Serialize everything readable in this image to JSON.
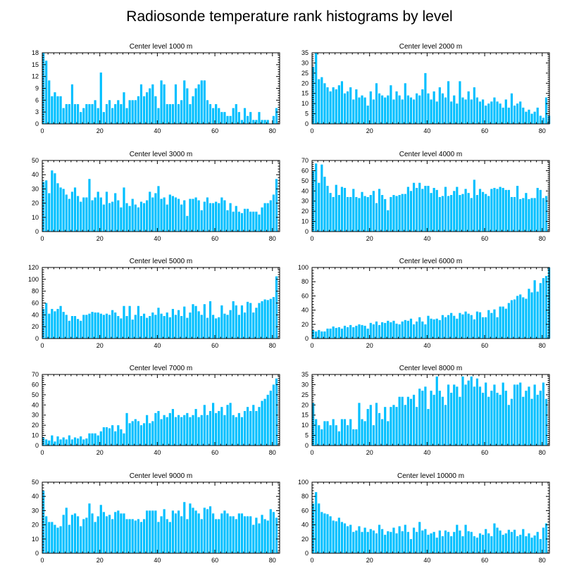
{
  "figure_title": "Radiosonde temperature rank histograms by level",
  "colors": {
    "bar": "#00bfff",
    "axis": "#000000",
    "background": "#ffffff"
  },
  "chart_data": [
    {
      "type": "bar",
      "title": "Center level 1000 m",
      "xlim": [
        0,
        82
      ],
      "ylim": [
        0,
        18
      ],
      "xticks": [
        0,
        20,
        40,
        60,
        80
      ],
      "yticks": [
        0,
        3,
        6,
        9,
        12,
        15,
        18
      ],
      "values": [
        18,
        16,
        11,
        7,
        8,
        7,
        7,
        4,
        5,
        5,
        10,
        5,
        5,
        3,
        4,
        5,
        5,
        5,
        6,
        4,
        13,
        3,
        5,
        6,
        4,
        5,
        6,
        5,
        8,
        4,
        6,
        6,
        6,
        7,
        10,
        7,
        8,
        9,
        10,
        7,
        4,
        11,
        10,
        5,
        5,
        5,
        10,
        5,
        6,
        11,
        9,
        5,
        7,
        9,
        10,
        11,
        11,
        6,
        5,
        4,
        5,
        4,
        3,
        3,
        2,
        2,
        4,
        5,
        3,
        1,
        4,
        2,
        3,
        1,
        1,
        3,
        1,
        1,
        1,
        0,
        2,
        4
      ],
      "xlabel": "",
      "ylabel": ""
    },
    {
      "type": "bar",
      "title": "Center level 2000 m",
      "xlim": [
        0,
        82
      ],
      "ylim": [
        0,
        35
      ],
      "xticks": [
        0,
        20,
        40,
        60,
        80
      ],
      "yticks": [
        0,
        5,
        10,
        15,
        20,
        25,
        30,
        35
      ],
      "values": [
        28,
        35,
        22,
        23,
        20,
        18,
        16,
        18,
        17,
        19,
        21,
        15,
        16,
        18,
        12,
        17,
        13,
        14,
        13,
        9,
        16,
        12,
        20,
        15,
        14,
        13,
        14,
        19,
        12,
        16,
        14,
        12,
        20,
        14,
        13,
        12,
        15,
        14,
        17,
        25,
        15,
        12,
        16,
        11,
        18,
        15,
        13,
        21,
        11,
        14,
        10,
        21,
        13,
        12,
        16,
        12,
        18,
        13,
        11,
        12,
        9,
        10,
        11,
        13,
        11,
        10,
        8,
        12,
        8,
        15,
        9,
        10,
        11,
        8,
        6,
        7,
        5,
        6,
        8,
        4,
        3,
        13,
        4
      ],
      "xlabel": "",
      "ylabel": ""
    },
    {
      "type": "bar",
      "title": "Center level 3000 m",
      "xlim": [
        0,
        82
      ],
      "ylim": [
        0,
        50
      ],
      "xticks": [
        0,
        20,
        40,
        60,
        80
      ],
      "yticks": [
        0,
        10,
        20,
        30,
        40,
        50
      ],
      "values": [
        35,
        36,
        27,
        43,
        41,
        34,
        31,
        30,
        26,
        23,
        28,
        31,
        25,
        21,
        24,
        24,
        37,
        22,
        24,
        28,
        24,
        19,
        28,
        20,
        21,
        27,
        22,
        17,
        31,
        20,
        18,
        23,
        19,
        17,
        21,
        20,
        22,
        28,
        24,
        27,
        32,
        23,
        24,
        19,
        26,
        25,
        24,
        23,
        19,
        22,
        11,
        23,
        23,
        24,
        22,
        15,
        21,
        24,
        20,
        20,
        21,
        20,
        24,
        22,
        15,
        20,
        14,
        18,
        14,
        13,
        16,
        16,
        14,
        14,
        14,
        12,
        17,
        20,
        20,
        22,
        26,
        37
      ],
      "xlabel": "",
      "ylabel": ""
    },
    {
      "type": "bar",
      "title": "Center level 4000 m",
      "xlim": [
        0,
        82
      ],
      "ylim": [
        0,
        70
      ],
      "xticks": [
        0,
        20,
        40,
        60,
        80
      ],
      "yticks": [
        0,
        10,
        20,
        30,
        40,
        50,
        60,
        70
      ],
      "values": [
        60,
        67,
        48,
        66,
        54,
        45,
        38,
        34,
        46,
        36,
        44,
        43,
        34,
        34,
        42,
        34,
        33,
        39,
        35,
        34,
        36,
        40,
        28,
        42,
        36,
        32,
        21,
        34,
        36,
        35,
        36,
        37,
        37,
        44,
        40,
        48,
        43,
        48,
        42,
        45,
        45,
        38,
        43,
        41,
        34,
        35,
        44,
        35,
        36,
        40,
        44,
        36,
        37,
        42,
        38,
        33,
        51,
        36,
        42,
        39,
        37,
        35,
        42,
        43,
        42,
        44,
        43,
        41,
        41,
        34,
        34,
        45,
        32,
        33,
        38,
        32,
        33,
        33,
        43,
        41,
        33,
        35
      ],
      "xlabel": "",
      "ylabel": ""
    },
    {
      "type": "bar",
      "title": "Center level 5000 m",
      "xlim": [
        0,
        82
      ],
      "ylim": [
        0,
        120
      ],
      "xticks": [
        0,
        20,
        40,
        60,
        80
      ],
      "yticks": [
        0,
        20,
        40,
        60,
        80,
        100,
        120
      ],
      "values": [
        50,
        60,
        42,
        50,
        46,
        50,
        55,
        45,
        40,
        30,
        38,
        38,
        33,
        30,
        40,
        40,
        42,
        45,
        44,
        44,
        42,
        40,
        42,
        40,
        48,
        44,
        38,
        34,
        55,
        38,
        55,
        32,
        40,
        55,
        38,
        42,
        35,
        38,
        44,
        40,
        52,
        42,
        38,
        44,
        36,
        50,
        40,
        48,
        38,
        54,
        35,
        44,
        58,
        55,
        46,
        40,
        58,
        35,
        63,
        40,
        34,
        36,
        56,
        42,
        40,
        48,
        63,
        56,
        40,
        56,
        44,
        62,
        60,
        44,
        52,
        60,
        63,
        66,
        65,
        67,
        70,
        105
      ],
      "xlabel": "",
      "ylabel": ""
    },
    {
      "type": "bar",
      "title": "Center level 6000 m",
      "xlim": [
        0,
        82
      ],
      "ylim": [
        0,
        100
      ],
      "xticks": [
        0,
        20,
        40,
        60,
        80
      ],
      "yticks": [
        0,
        20,
        40,
        60,
        80,
        100
      ],
      "values": [
        12,
        10,
        12,
        10,
        10,
        14,
        14,
        17,
        15,
        16,
        14,
        18,
        16,
        19,
        16,
        18,
        20,
        19,
        18,
        14,
        22,
        20,
        24,
        19,
        23,
        22,
        25,
        23,
        25,
        21,
        20,
        24,
        26,
        25,
        28,
        20,
        24,
        30,
        24,
        20,
        32,
        28,
        27,
        28,
        26,
        33,
        30,
        33,
        36,
        32,
        28,
        36,
        34,
        38,
        35,
        33,
        27,
        38,
        37,
        30,
        30,
        40,
        36,
        41,
        30,
        45,
        45,
        42,
        50,
        54,
        55,
        60,
        62,
        58,
        56,
        70,
        65,
        82,
        66,
        78,
        85,
        88,
        100
      ],
      "xlabel": "",
      "ylabel": ""
    },
    {
      "type": "bar",
      "title": "Center level 7000 m",
      "xlim": [
        0,
        82
      ],
      "ylim": [
        0,
        70
      ],
      "xticks": [
        0,
        20,
        40,
        60,
        80
      ],
      "yticks": [
        0,
        10,
        20,
        30,
        40,
        50,
        60,
        70
      ],
      "values": [
        8,
        6,
        5,
        10,
        4,
        9,
        6,
        8,
        6,
        10,
        6,
        8,
        7,
        9,
        6,
        7,
        12,
        12,
        12,
        10,
        14,
        18,
        18,
        17,
        20,
        14,
        20,
        16,
        12,
        32,
        22,
        24,
        26,
        24,
        20,
        22,
        30,
        22,
        24,
        32,
        34,
        26,
        30,
        28,
        32,
        36,
        28,
        30,
        28,
        30,
        32,
        28,
        30,
        36,
        28,
        30,
        40,
        30,
        34,
        42,
        32,
        34,
        38,
        30,
        40,
        42,
        30,
        28,
        32,
        28,
        34,
        38,
        34,
        40,
        34,
        38,
        44,
        46,
        50,
        54,
        60,
        66
      ],
      "xlabel": "",
      "ylabel": ""
    },
    {
      "type": "bar",
      "title": "Center level 8000 m",
      "xlim": [
        0,
        82
      ],
      "ylim": [
        0,
        35
      ],
      "xticks": [
        0,
        20,
        40,
        60,
        80
      ],
      "yticks": [
        0,
        5,
        10,
        15,
        20,
        25,
        30,
        35
      ],
      "values": [
        21,
        13,
        10,
        8,
        12,
        12,
        10,
        13,
        10,
        7,
        13,
        13,
        10,
        13,
        8,
        8,
        21,
        13,
        12,
        18,
        20,
        10,
        21,
        16,
        13,
        19,
        12,
        19,
        20,
        19,
        24,
        24,
        20,
        24,
        23,
        25,
        19,
        28,
        27,
        29,
        18,
        27,
        25,
        34,
        27,
        24,
        20,
        30,
        26,
        30,
        29,
        24,
        34,
        30,
        32,
        34,
        29,
        33,
        29,
        26,
        31,
        24,
        27,
        30,
        26,
        25,
        31,
        27,
        20,
        23,
        30,
        30,
        31,
        24,
        27,
        29,
        23,
        30,
        25,
        27,
        31,
        23
      ],
      "xlabel": "",
      "ylabel": ""
    },
    {
      "type": "bar",
      "title": "Center level 9000 m",
      "xlim": [
        0,
        82
      ],
      "ylim": [
        0,
        50
      ],
      "xticks": [
        0,
        20,
        40,
        60,
        80
      ],
      "yticks": [
        0,
        10,
        20,
        30,
        40,
        50
      ],
      "values": [
        44,
        26,
        22,
        22,
        20,
        18,
        19,
        27,
        32,
        20,
        27,
        28,
        26,
        19,
        24,
        25,
        35,
        28,
        22,
        26,
        34,
        29,
        26,
        27,
        24,
        29,
        30,
        28,
        28,
        24,
        24,
        24,
        23,
        24,
        22,
        24,
        30,
        30,
        30,
        30,
        22,
        26,
        31,
        24,
        22,
        30,
        28,
        30,
        26,
        36,
        24,
        35,
        32,
        30,
        28,
        24,
        32,
        31,
        33,
        28,
        24,
        24,
        28,
        30,
        28,
        26,
        26,
        24,
        28,
        28,
        26,
        26,
        26,
        20,
        25,
        21,
        27,
        24,
        23,
        31,
        29,
        25
      ],
      "xlabel": "",
      "ylabel": ""
    },
    {
      "type": "bar",
      "title": "Center level 10000 m",
      "xlim": [
        0,
        82
      ],
      "ylim": [
        0,
        100
      ],
      "xticks": [
        0,
        20,
        40,
        60,
        80
      ],
      "yticks": [
        0,
        20,
        40,
        60,
        80,
        100
      ],
      "values": [
        70,
        86,
        70,
        58,
        56,
        55,
        52,
        46,
        45,
        50,
        44,
        42,
        38,
        40,
        30,
        32,
        38,
        30,
        36,
        30,
        34,
        32,
        28,
        40,
        34,
        26,
        31,
        30,
        36,
        28,
        38,
        31,
        40,
        30,
        20,
        36,
        30,
        44,
        32,
        34,
        26,
        28,
        30,
        22,
        32,
        24,
        32,
        30,
        24,
        30,
        40,
        32,
        24,
        40,
        31,
        30,
        24,
        22,
        28,
        26,
        34,
        28,
        24,
        42,
        36,
        32,
        26,
        28,
        33,
        30,
        33,
        24,
        26,
        34,
        24,
        28,
        22,
        25,
        30,
        20,
        36,
        42
      ],
      "xlabel": "",
      "ylabel": ""
    }
  ]
}
